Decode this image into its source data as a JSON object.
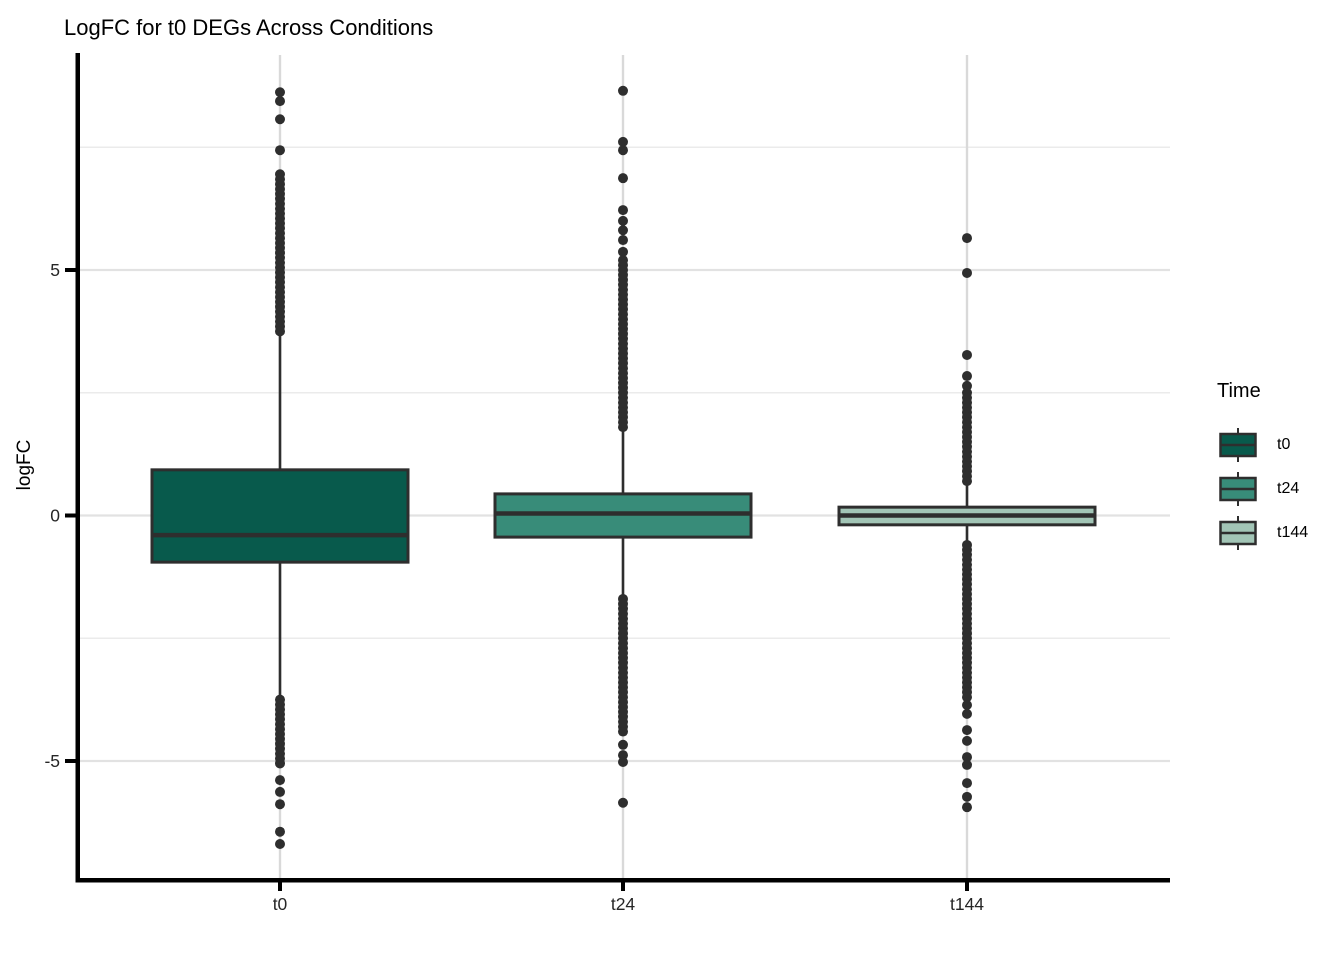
{
  "chart_data": {
    "type": "boxplot",
    "title": "LogFC for t0 DEGs Across Conditions",
    "xlabel": "",
    "ylabel": "logFC",
    "ylim": [
      -7.4,
      9.4
    ],
    "y_ticks": [
      5,
      0,
      -5
    ],
    "y_minor_ticks": [
      7.5,
      2.5,
      -2.5
    ],
    "categories": [
      "t0",
      "t24",
      "t144"
    ],
    "grid": true,
    "legend_position": "right",
    "series": [
      {
        "name": "t0",
        "color": "#085a4c",
        "q1": -0.95,
        "median": -0.4,
        "q3": 0.93,
        "whisker_low": -3.7,
        "whisker_high": 3.72,
        "outliers_high": [
          8.62,
          8.44,
          8.07,
          7.44,
          6.95,
          6.85,
          6.75,
          6.65,
          6.55,
          6.45,
          6.35,
          6.25,
          6.15,
          6.05,
          5.95,
          5.85,
          5.75,
          5.65,
          5.55,
          5.45,
          5.35,
          5.25,
          5.15,
          5.05,
          4.95,
          4.85,
          4.75,
          4.65,
          4.55,
          4.45,
          4.35,
          4.25,
          4.15,
          4.05,
          3.95,
          3.85,
          3.75
        ],
        "outliers_low": [
          -3.75,
          -3.85,
          -3.95,
          -4.05,
          -4.15,
          -4.25,
          -4.35,
          -4.45,
          -4.55,
          -4.65,
          -4.75,
          -4.85,
          -4.95,
          -5.05,
          -5.39,
          -5.63,
          -5.88,
          -6.44,
          -6.69
        ]
      },
      {
        "name": "t24",
        "color": "#388c79",
        "q1": -0.44,
        "median": 0.04,
        "q3": 0.44,
        "whisker_low": -1.62,
        "whisker_high": 1.74,
        "outliers_high": [
          8.65,
          7.61,
          7.44,
          6.87,
          6.22,
          6.0,
          5.81,
          5.61,
          5.37,
          5.2,
          5.1,
          5.0,
          4.9,
          4.8,
          4.7,
          4.6,
          4.5,
          4.4,
          4.3,
          4.2,
          4.1,
          4.0,
          3.9,
          3.8,
          3.7,
          3.6,
          3.5,
          3.4,
          3.3,
          3.2,
          3.1,
          3.0,
          2.9,
          2.8,
          2.7,
          2.6,
          2.5,
          2.4,
          2.3,
          2.2,
          2.1,
          2.0,
          1.9,
          1.8
        ],
        "outliers_low": [
          -1.7,
          -1.8,
          -1.9,
          -2.0,
          -2.1,
          -2.2,
          -2.3,
          -2.4,
          -2.5,
          -2.6,
          -2.7,
          -2.8,
          -2.9,
          -3.0,
          -3.1,
          -3.2,
          -3.3,
          -3.4,
          -3.5,
          -3.6,
          -3.7,
          -3.8,
          -3.9,
          -4.0,
          -4.1,
          -4.2,
          -4.3,
          -4.4,
          -4.67,
          -4.88,
          -5.02,
          -5.85
        ]
      },
      {
        "name": "t144",
        "color": "#a2c5b6",
        "q1": -0.19,
        "median": 0.0,
        "q3": 0.17,
        "whisker_low": -0.54,
        "whisker_high": 0.62,
        "outliers_high": [
          5.65,
          4.94,
          3.27,
          2.84,
          2.64,
          2.5,
          2.4,
          2.3,
          2.2,
          2.1,
          2.0,
          1.9,
          1.8,
          1.7,
          1.6,
          1.5,
          1.4,
          1.3,
          1.2,
          1.1,
          1.0,
          0.9,
          0.8,
          0.7
        ],
        "outliers_low": [
          -0.6,
          -0.7,
          -0.8,
          -0.9,
          -1.0,
          -1.1,
          -1.2,
          -1.3,
          -1.4,
          -1.5,
          -1.6,
          -1.7,
          -1.8,
          -1.9,
          -2.0,
          -2.1,
          -2.2,
          -2.3,
          -2.4,
          -2.5,
          -2.6,
          -2.7,
          -2.8,
          -2.9,
          -3.0,
          -3.1,
          -3.2,
          -3.3,
          -3.4,
          -3.5,
          -3.6,
          -3.7,
          -3.86,
          -4.04,
          -4.37,
          -4.59,
          -4.92,
          -5.08,
          -5.45,
          -5.73,
          -5.94
        ]
      }
    ]
  },
  "legend": {
    "title": "Time",
    "entries": [
      {
        "label": "t0",
        "color": "#085a4c"
      },
      {
        "label": "t24",
        "color": "#388c79"
      },
      {
        "label": "t144",
        "color": "#a2c5b6"
      }
    ]
  },
  "style_colors": {
    "box_stroke": "#2e2e2e",
    "outlier": "#2e2e2e",
    "axis_line": "#000000",
    "grid_major": "#e2e2e2",
    "grid_minor": "#ebebeb",
    "grid_vertical": "#d9d9d9",
    "tick_text": "#262626"
  }
}
